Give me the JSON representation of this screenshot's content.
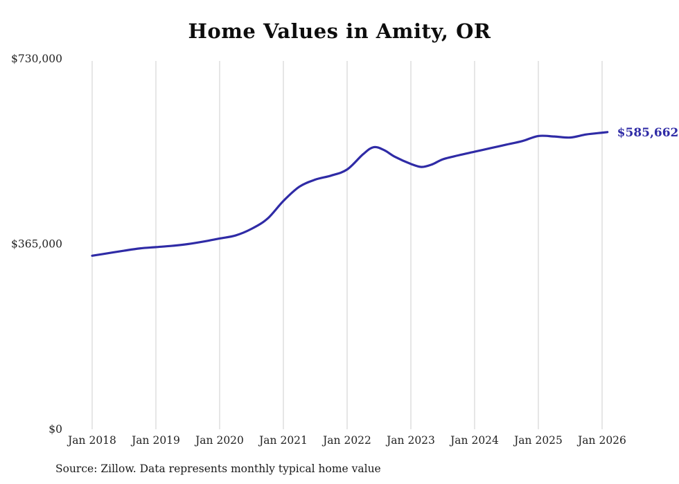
{
  "chart_data": {
    "type": "line",
    "title": "Home Values in Amity, OR",
    "source": "Source: Zillow. Data represents monthly typical home value",
    "xlabel": "",
    "ylabel": "",
    "ylim": [
      0,
      730000
    ],
    "grid": "vertical",
    "legend": "none",
    "end_label": "$585,662",
    "colors": {
      "accent": "#2f2ba6",
      "gridline": "#cccccc",
      "text": "#222222"
    },
    "y_ticks": [
      {
        "label": "$0",
        "value": 0
      },
      {
        "label": "$365,000",
        "value": 365000
      },
      {
        "label": "$730,000",
        "value": 730000
      }
    ],
    "x_ticks": [
      {
        "label": "Jan 2018",
        "month": "2018-01"
      },
      {
        "label": "Jan 2019",
        "month": "2019-01"
      },
      {
        "label": "Jan 2020",
        "month": "2020-01"
      },
      {
        "label": "Jan 2021",
        "month": "2021-01"
      },
      {
        "label": "Jan 2022",
        "month": "2022-01"
      },
      {
        "label": "Jan 2023",
        "month": "2023-01"
      },
      {
        "label": "Jan 2024",
        "month": "2024-01"
      },
      {
        "label": "Jan 2025",
        "month": "2025-01"
      },
      {
        "label": "Jan 2026",
        "month": "2026-01"
      }
    ],
    "series": [
      {
        "name": "Typical home value",
        "color": "#2f2ba6",
        "points": [
          {
            "month": "2018-01",
            "value": 342000
          },
          {
            "month": "2018-04",
            "value": 347000
          },
          {
            "month": "2018-07",
            "value": 352000
          },
          {
            "month": "2018-10",
            "value": 356500
          },
          {
            "month": "2019-01",
            "value": 359000
          },
          {
            "month": "2019-04",
            "value": 361500
          },
          {
            "month": "2019-07",
            "value": 365000
          },
          {
            "month": "2019-10",
            "value": 370000
          },
          {
            "month": "2020-01",
            "value": 376000
          },
          {
            "month": "2020-04",
            "value": 382000
          },
          {
            "month": "2020-07",
            "value": 395000
          },
          {
            "month": "2020-10",
            "value": 415000
          },
          {
            "month": "2021-01",
            "value": 450000
          },
          {
            "month": "2021-04",
            "value": 478000
          },
          {
            "month": "2021-07",
            "value": 492000
          },
          {
            "month": "2021-10",
            "value": 500000
          },
          {
            "month": "2022-01",
            "value": 512000
          },
          {
            "month": "2022-04",
            "value": 542000
          },
          {
            "month": "2022-06",
            "value": 556000
          },
          {
            "month": "2022-08",
            "value": 550000
          },
          {
            "month": "2022-10",
            "value": 537000
          },
          {
            "month": "2023-01",
            "value": 523000
          },
          {
            "month": "2023-03",
            "value": 517000
          },
          {
            "month": "2023-05",
            "value": 522000
          },
          {
            "month": "2023-07",
            "value": 532000
          },
          {
            "month": "2023-10",
            "value": 540000
          },
          {
            "month": "2024-01",
            "value": 547000
          },
          {
            "month": "2024-04",
            "value": 554000
          },
          {
            "month": "2024-07",
            "value": 561000
          },
          {
            "month": "2024-10",
            "value": 568000
          },
          {
            "month": "2025-01",
            "value": 578000
          },
          {
            "month": "2025-04",
            "value": 577000
          },
          {
            "month": "2025-07",
            "value": 575000
          },
          {
            "month": "2025-10",
            "value": 581000
          },
          {
            "month": "2026-01",
            "value": 584500
          },
          {
            "month": "2026-02",
            "value": 585662
          }
        ]
      }
    ]
  }
}
